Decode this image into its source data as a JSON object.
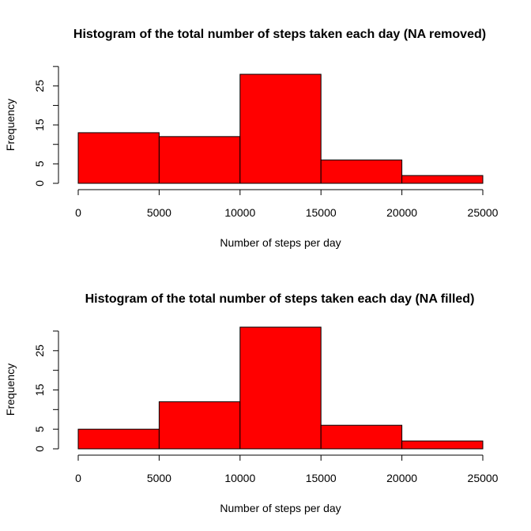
{
  "chart_data": [
    {
      "type": "bar",
      "title": "Histogram of the total number of steps taken each day (NA removed)",
      "xlabel": "Number of steps per day",
      "ylabel": "Frequency",
      "bins": [
        [
          0,
          5000
        ],
        [
          5000,
          10000
        ],
        [
          10000,
          15000
        ],
        [
          15000,
          20000
        ],
        [
          20000,
          25000
        ]
      ],
      "values": [
        13,
        12,
        28,
        6,
        2
      ],
      "xlim": [
        0,
        25000
      ],
      "ylim": [
        0,
        28
      ],
      "xticks": [
        "0",
        "5000",
        "10000",
        "15000",
        "20000",
        "25000"
      ],
      "yticks": [
        "0",
        "5",
        "15",
        "25"
      ],
      "bar_color": "#ff0000",
      "border_color": "#000000",
      "grid": false,
      "legend": "none"
    },
    {
      "type": "bar",
      "title": "Histogram of the total number of steps taken each day (NA filled)",
      "xlabel": "Number of steps per day",
      "ylabel": "Frequency",
      "bins": [
        [
          0,
          5000
        ],
        [
          5000,
          10000
        ],
        [
          10000,
          15000
        ],
        [
          15000,
          20000
        ],
        [
          20000,
          25000
        ]
      ],
      "values": [
        5,
        12,
        31,
        6,
        2
      ],
      "xlim": [
        0,
        25000
      ],
      "ylim": [
        0,
        31
      ],
      "xticks": [
        "0",
        "5000",
        "10000",
        "15000",
        "20000",
        "25000"
      ],
      "yticks": [
        "0",
        "5",
        "15",
        "25"
      ],
      "bar_color": "#ff0000",
      "border_color": "#000000",
      "grid": false,
      "legend": "none"
    }
  ]
}
